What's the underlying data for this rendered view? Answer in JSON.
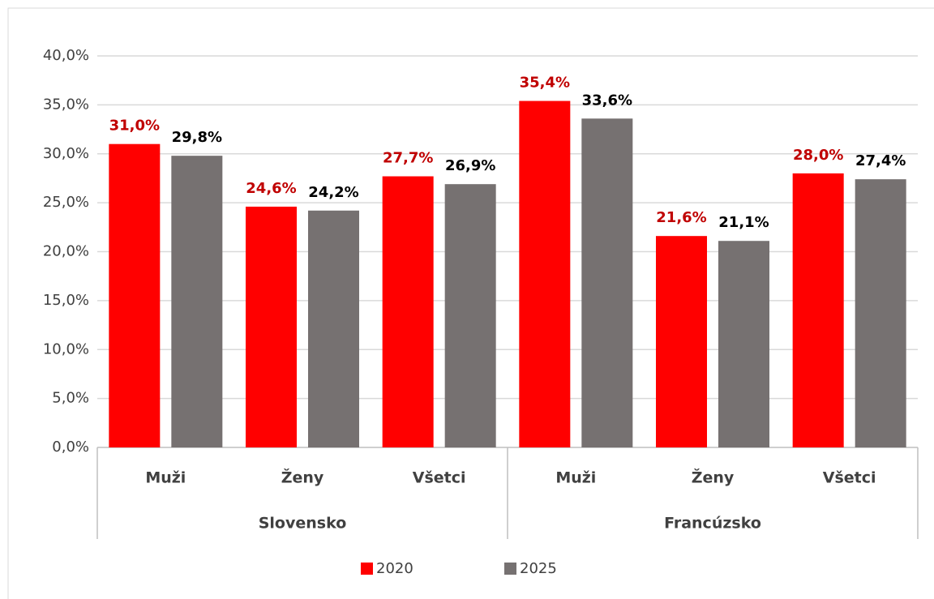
{
  "chart_data": {
    "type": "bar",
    "groups": [
      {
        "name": "Slovensko",
        "categories": [
          "Muži",
          "Ženy",
          "Všetci"
        ]
      },
      {
        "name": "Francúzsko",
        "categories": [
          "Muži",
          "Ženy",
          "Všetci"
        ]
      }
    ],
    "series": [
      {
        "name": "2020",
        "color": "#ff0000",
        "label_color": "#c00000",
        "values": [
          31.0,
          24.6,
          27.7,
          35.4,
          21.6,
          28.0
        ],
        "value_labels": [
          "31,0%",
          "24,6%",
          "27,7%",
          "35,4%",
          "21,6%",
          "28,0%"
        ]
      },
      {
        "name": "2025",
        "color": "#767171",
        "label_color": "#000000",
        "values": [
          29.8,
          24.2,
          26.9,
          33.6,
          21.1,
          27.4
        ],
        "value_labels": [
          "29,8%",
          "24,2%",
          "26,9%",
          "33,6%",
          "21,1%",
          "27,4%"
        ]
      }
    ],
    "ylim": [
      0,
      40
    ],
    "yticks": [
      {
        "value": 0,
        "label": "0,0%"
      },
      {
        "value": 5,
        "label": "5,0%"
      },
      {
        "value": 10,
        "label": "10,0%"
      },
      {
        "value": 15,
        "label": "15,0%"
      },
      {
        "value": 20,
        "label": "20,0%"
      },
      {
        "value": 25,
        "label": "25,0%"
      },
      {
        "value": 30,
        "label": "30,0%"
      },
      {
        "value": 35,
        "label": "35,0%"
      },
      {
        "value": 40,
        "label": "40,0%"
      }
    ],
    "grid": true,
    "legend": "bottom"
  }
}
